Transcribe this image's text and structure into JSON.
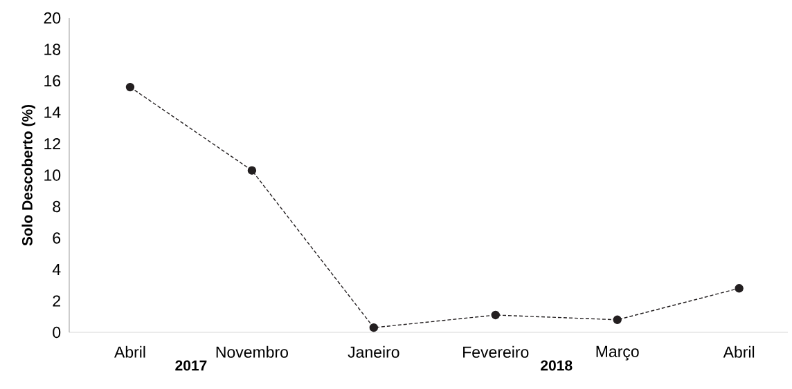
{
  "chart_data": {
    "type": "line",
    "ylabel": "Solo Descoberto (%)",
    "categories": [
      "Abril",
      "Novembro",
      "Janeiro",
      "Fevereiro",
      "Março",
      "Abril"
    ],
    "values": [
      15.6,
      10.3,
      0.3,
      1.1,
      0.8,
      2.8
    ],
    "color": "#231f20",
    "ylim": [
      0,
      20
    ],
    "yticks": [
      0,
      2,
      4,
      6,
      8,
      10,
      12,
      14,
      16,
      18,
      20
    ],
    "marker": "circle",
    "line_style": "dashed",
    "grid": false,
    "annotations": [
      "2017",
      "2018"
    ]
  }
}
